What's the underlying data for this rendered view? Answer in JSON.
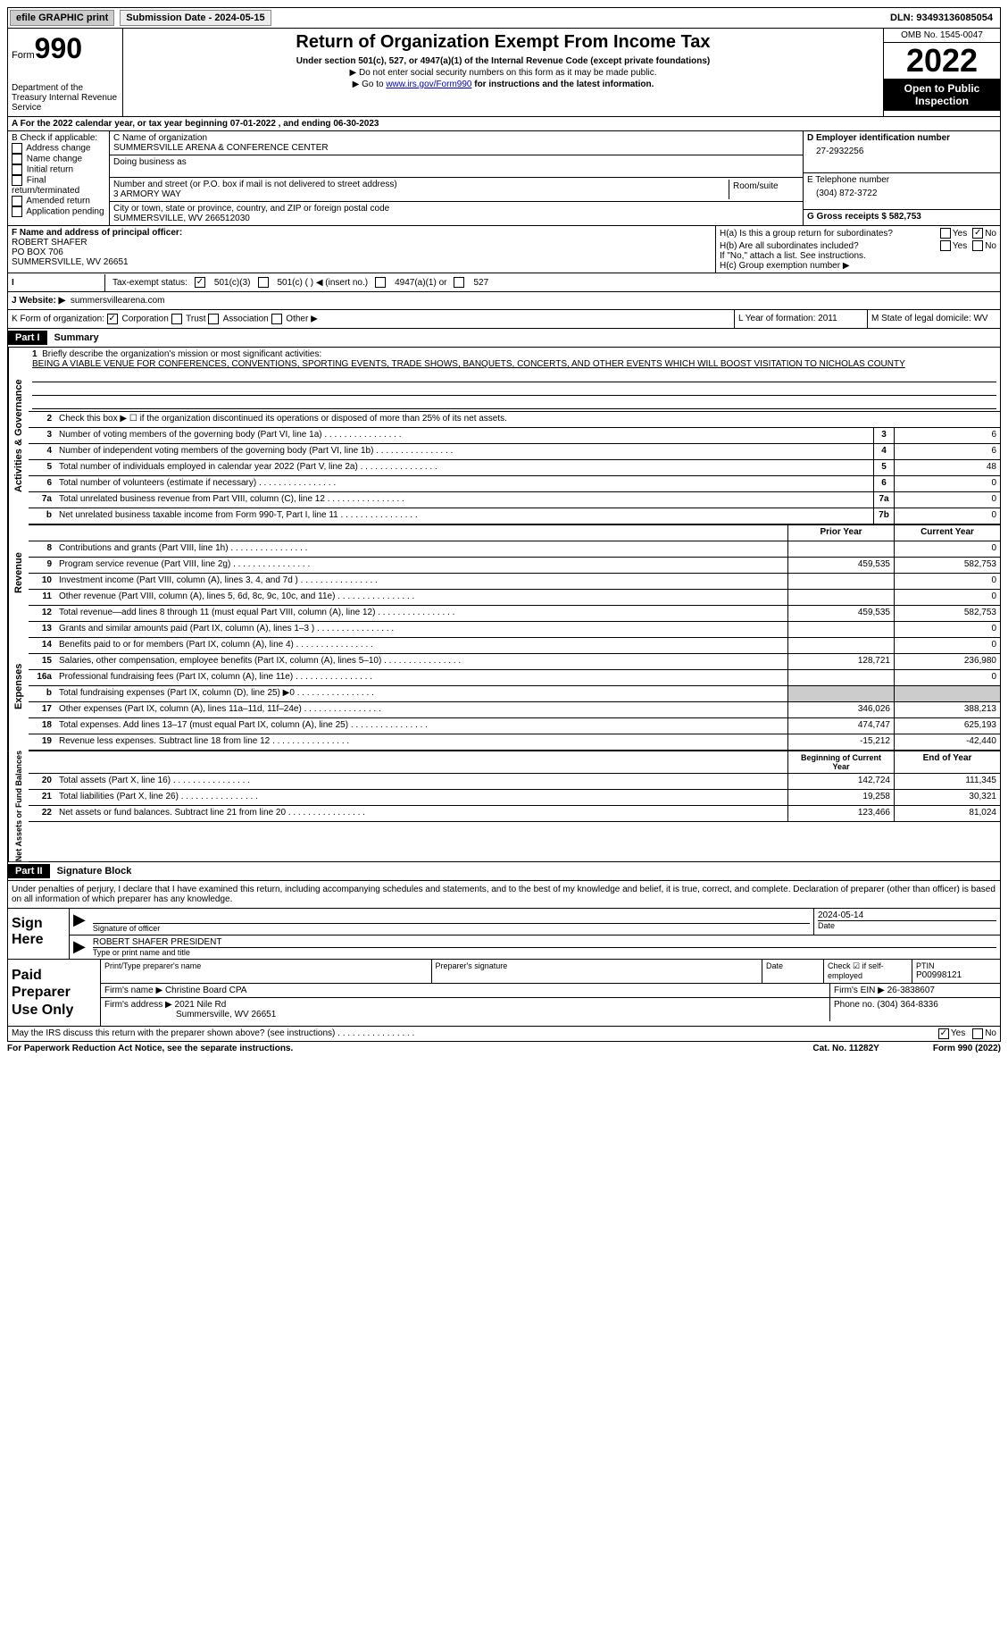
{
  "topbar": {
    "efile_label": "efile GRAPHIC print",
    "submission_label": "Submission Date - 2024-05-15",
    "dln_label": "DLN: 93493136085054"
  },
  "header": {
    "form_prefix": "Form",
    "form_num": "990",
    "dept": "Department of the Treasury\nInternal Revenue Service",
    "title": "Return of Organization Exempt From Income Tax",
    "sub1": "Under section 501(c), 527, or 4947(a)(1) of the Internal Revenue Code (except private foundations)",
    "sub2": "▶ Do not enter social security numbers on this form as it may be made public.",
    "sub3_prefix": "▶ Go to ",
    "sub3_link": "www.irs.gov/Form990",
    "sub3_suffix": " for instructions and the latest information.",
    "omb": "OMB No. 1545-0047",
    "year": "2022",
    "inspect": "Open to Public Inspection"
  },
  "row_a": "A For the 2022 calendar year, or tax year beginning 07-01-2022    , and ending 06-30-2023",
  "col_b": {
    "hdr": "B Check if applicable:",
    "opts": [
      "Address change",
      "Name change",
      "Initial return",
      "Final return/terminated",
      "Amended return",
      "Application pending"
    ]
  },
  "col_c": {
    "name_lbl": "C Name of organization",
    "name": "SUMMERSVILLE ARENA & CONFERENCE CENTER",
    "dba_lbl": "Doing business as",
    "addr_lbl": "Number and street (or P.O. box if mail is not delivered to street address)",
    "addr": "3 ARMORY WAY",
    "room_lbl": "Room/suite",
    "city_lbl": "City or town, state or province, country, and ZIP or foreign postal code",
    "city": "SUMMERSVILLE, WV  266512030"
  },
  "col_d": {
    "d_lbl": "D Employer identification number",
    "d_val": "27-2932256",
    "e_lbl": "E Telephone number",
    "e_val": "(304) 872-3722",
    "g_lbl": "G Gross receipts $ 582,753"
  },
  "fh": {
    "f_lbl": "F Name and address of principal officer:",
    "f_name": "ROBERT SHAFER",
    "f_addr1": "PO BOX 706",
    "f_addr2": "SUMMERSVILLE, WV  26651",
    "ha": "H(a)  Is this a group return for subordinates?",
    "hb": "H(b)  Are all subordinates included?",
    "hb_note": "If \"No,\" attach a list. See instructions.",
    "hc": "H(c)  Group exemption number ▶",
    "yes": "Yes",
    "no": "No"
  },
  "tax_status": {
    "lbl": "Tax-exempt status:",
    "o1": "501(c)(3)",
    "o2": "501(c) (  ) ◀ (insert no.)",
    "o3": "4947(a)(1) or",
    "o4": "527"
  },
  "j": {
    "lbl": "J   Website: ▶",
    "val": "summersvillearena.com"
  },
  "k": {
    "lbl": "K Form of organization:",
    "o1": "Corporation",
    "o2": "Trust",
    "o3": "Association",
    "o4": "Other ▶",
    "l": "L Year of formation: 2011",
    "m": "M State of legal domicile: WV"
  },
  "parts": {
    "p1": "Part I",
    "p1t": "Summary",
    "p2": "Part II",
    "p2t": "Signature Block"
  },
  "summary": {
    "line1_lbl": "Briefly describe the organization's mission or most significant activities:",
    "mission": "BEING A VIABLE VENUE FOR CONFERENCES, CONVENTIONS, SPORTING EVENTS, TRADE SHOWS, BANQUETS, CONCERTS, AND OTHER EVENTS WHICH WILL BOOST VISITATION TO NICHOLAS COUNTY",
    "line2": "Check this box ▶ ☐  if the organization discontinued its operations or disposed of more than 25% of its net assets.",
    "rows_gov": [
      {
        "n": "3",
        "d": "Number of voting members of the governing body (Part VI, line 1a)",
        "box": "3",
        "v": "6"
      },
      {
        "n": "4",
        "d": "Number of independent voting members of the governing body (Part VI, line 1b)",
        "box": "4",
        "v": "6"
      },
      {
        "n": "5",
        "d": "Total number of individuals employed in calendar year 2022 (Part V, line 2a)",
        "box": "5",
        "v": "48"
      },
      {
        "n": "6",
        "d": "Total number of volunteers (estimate if necessary)",
        "box": "6",
        "v": "0"
      },
      {
        "n": "7a",
        "d": "Total unrelated business revenue from Part VIII, column (C), line 12",
        "box": "7a",
        "v": "0"
      },
      {
        "n": "b",
        "d": "Net unrelated business taxable income from Form 990-T, Part I, line 11",
        "box": "7b",
        "v": "0"
      }
    ],
    "col_hdr_prior": "Prior Year",
    "col_hdr_current": "Current Year",
    "rows_rev": [
      {
        "n": "8",
        "d": "Contributions and grants (Part VIII, line 1h)",
        "p": "",
        "c": "0"
      },
      {
        "n": "9",
        "d": "Program service revenue (Part VIII, line 2g)",
        "p": "459,535",
        "c": "582,753"
      },
      {
        "n": "10",
        "d": "Investment income (Part VIII, column (A), lines 3, 4, and 7d )",
        "p": "",
        "c": "0"
      },
      {
        "n": "11",
        "d": "Other revenue (Part VIII, column (A), lines 5, 6d, 8c, 9c, 10c, and 11e)",
        "p": "",
        "c": "0"
      },
      {
        "n": "12",
        "d": "Total revenue—add lines 8 through 11 (must equal Part VIII, column (A), line 12)",
        "p": "459,535",
        "c": "582,753"
      }
    ],
    "rows_exp": [
      {
        "n": "13",
        "d": "Grants and similar amounts paid (Part IX, column (A), lines 1–3 )",
        "p": "",
        "c": "0"
      },
      {
        "n": "14",
        "d": "Benefits paid to or for members (Part IX, column (A), line 4)",
        "p": "",
        "c": "0"
      },
      {
        "n": "15",
        "d": "Salaries, other compensation, employee benefits (Part IX, column (A), lines 5–10)",
        "p": "128,721",
        "c": "236,980"
      },
      {
        "n": "16a",
        "d": "Professional fundraising fees (Part IX, column (A), line 11e)",
        "p": "",
        "c": "0"
      },
      {
        "n": "b",
        "d": "Total fundraising expenses (Part IX, column (D), line 25) ▶0",
        "p": "shade",
        "c": "shade"
      },
      {
        "n": "17",
        "d": "Other expenses (Part IX, column (A), lines 11a–11d, 11f–24e)",
        "p": "346,026",
        "c": "388,213"
      },
      {
        "n": "18",
        "d": "Total expenses. Add lines 13–17 (must equal Part IX, column (A), line 25)",
        "p": "474,747",
        "c": "625,193"
      },
      {
        "n": "19",
        "d": "Revenue less expenses. Subtract line 18 from line 12",
        "p": "-15,212",
        "c": "-42,440"
      }
    ],
    "col_hdr_beg": "Beginning of Current Year",
    "col_hdr_end": "End of Year",
    "rows_net": [
      {
        "n": "20",
        "d": "Total assets (Part X, line 16)",
        "p": "142,724",
        "c": "111,345"
      },
      {
        "n": "21",
        "d": "Total liabilities (Part X, line 26)",
        "p": "19,258",
        "c": "30,321"
      },
      {
        "n": "22",
        "d": "Net assets or fund balances. Subtract line 21 from line 20",
        "p": "123,466",
        "c": "81,024"
      }
    ],
    "side_gov": "Activities & Governance",
    "side_rev": "Revenue",
    "side_exp": "Expenses",
    "side_net": "Net Assets or Fund Balances"
  },
  "sig": {
    "declaration": "Under penalties of perjury, I declare that I have examined this return, including accompanying schedules and statements, and to the best of my knowledge and belief, it is true, correct, and complete. Declaration of preparer (other than officer) is based on all information of which preparer has any knowledge.",
    "sign_here": "Sign Here",
    "sig_officer": "Signature of officer",
    "date": "Date",
    "date_val": "2024-05-14",
    "name_title": "ROBERT SHAFER  PRESIDENT",
    "name_lbl": "Type or print name and title",
    "paid": "Paid Preparer Use Only",
    "pp_name_lbl": "Print/Type preparer's name",
    "pp_sig_lbl": "Preparer's signature",
    "pp_date_lbl": "Date",
    "pp_check": "Check ☑ if self-employed",
    "ptin_lbl": "PTIN",
    "ptin": "P00998121",
    "firm_name_lbl": "Firm's name    ▶",
    "firm_name": "Christine Board CPA",
    "firm_ein_lbl": "Firm's EIN ▶",
    "firm_ein": "26-3838607",
    "firm_addr_lbl": "Firm's address ▶",
    "firm_addr1": "2021 Nile Rd",
    "firm_addr2": "Summersville, WV  26651",
    "phone_lbl": "Phone no.",
    "phone": "(304) 364-8336"
  },
  "footer": {
    "discuss": "May the IRS discuss this return with the preparer shown above? (see instructions)",
    "yes": "Yes",
    "no": "No",
    "paperwork": "For Paperwork Reduction Act Notice, see the separate instructions.",
    "cat": "Cat. No. 11282Y",
    "form": "Form 990 (2022)"
  }
}
